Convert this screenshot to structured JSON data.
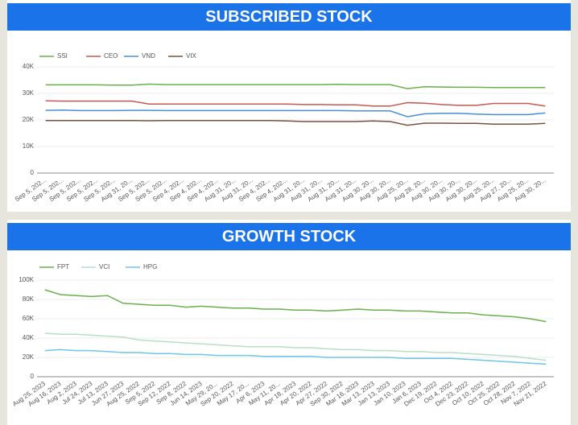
{
  "chart_data": [
    {
      "type": "line",
      "title": "SUBSCRIBED STOCK",
      "categories": [
        "Sep 5, 202...",
        "Sep 5, 202...",
        "Sep 5, 202...",
        "Sep 5, 202...",
        "Sep 5, 202...",
        "Aug 31, 20...",
        "Sep 5, 202...",
        "Sep 5, 202...",
        "Sep 4, 202...",
        "Sep 4, 202...",
        "Sep 4, 202...",
        "Aug 31, 20...",
        "Aug 31, 20...",
        "Sep 4, 202...",
        "Sep 4, 202...",
        "Aug 31, 20...",
        "Aug 31, 20...",
        "Aug 31, 20...",
        "Aug 31, 20...",
        "Aug 30, 20...",
        "Aug 30, 20...",
        "Aug 25, 20...",
        "Aug 28, 20...",
        "Aug 30, 20...",
        "Aug 30, 20...",
        "Aug 30, 20...",
        "Aug 25, 20...",
        "Aug 27, 20...",
        "Aug 25, 20...",
        "Aug 30, 20..."
      ],
      "series": [
        {
          "name": "SSI",
          "color": "#6ab04c",
          "values": [
            33200,
            33200,
            33200,
            33200,
            33100,
            33100,
            33500,
            33300,
            33300,
            33300,
            33300,
            33300,
            33300,
            33300,
            33300,
            33300,
            33300,
            33400,
            33300,
            33300,
            33300,
            31800,
            32500,
            32400,
            32300,
            32300,
            32200,
            32200,
            32200,
            32200
          ]
        },
        {
          "name": "CEO",
          "color": "#c8584f",
          "values": [
            27200,
            27100,
            27100,
            27100,
            27100,
            27100,
            26000,
            26000,
            26000,
            26000,
            26000,
            26000,
            26000,
            26000,
            26000,
            25800,
            25800,
            25700,
            25700,
            25200,
            25200,
            26500,
            26300,
            25800,
            25500,
            25500,
            26200,
            26200,
            26200,
            25200
          ]
        },
        {
          "name": "VND",
          "color": "#4a90d9",
          "values": [
            23600,
            23700,
            23500,
            23500,
            23500,
            23600,
            23600,
            23500,
            23500,
            23500,
            23500,
            23500,
            23500,
            23500,
            23500,
            23500,
            23500,
            23500,
            23400,
            23400,
            23400,
            21200,
            22300,
            22500,
            22500,
            22200,
            22000,
            22000,
            22000,
            22600
          ]
        },
        {
          "name": "VIX",
          "color": "#7b5042",
          "values": [
            19800,
            19800,
            19800,
            19800,
            19800,
            19800,
            19700,
            19800,
            19800,
            19800,
            19800,
            19800,
            19800,
            19800,
            19600,
            19400,
            19400,
            19400,
            19400,
            19600,
            19400,
            18000,
            18800,
            18800,
            18700,
            18700,
            18400,
            18400,
            18400,
            18700
          ]
        }
      ],
      "ylim": [
        0,
        40000
      ],
      "yticks": [
        0,
        {
          "value": 10000,
          "label": "10K"
        },
        {
          "value": 20000,
          "label": "20K"
        },
        {
          "value": 30000,
          "label": "30K"
        },
        {
          "value": 40000,
          "label": "40K"
        }
      ],
      "grid": true,
      "legend": "top"
    },
    {
      "type": "line",
      "title": "GROWTH STOCK",
      "categories": [
        "Aug 25, 2023",
        "Aug 16, 2023",
        "Aug 2, 2023",
        "Jul 24, 2023",
        "Jul 13, 2023",
        "Jun 27, 2023",
        "Aug 25, 2022",
        "Sep 5, 2022",
        "Sep 12, 2022",
        "Sep 8, 2022",
        "Jun 14, 2023",
        "May 29, 20...",
        "Sep 20, 2022",
        "May 17, 20...",
        "Apr 6, 2023",
        "May 11, 20...",
        "Apr 18, 2023",
        "Apr 20, 2022",
        "Apr 27, 2022",
        "Sep 30, 2022",
        "Mar 16, 2023",
        "Mar 13, 2023",
        "Jan 13, 2023",
        "Jan 10, 2023",
        "Jan 6, 2023",
        "Dec 19, 2022",
        "Oct 4, 2022",
        "Dec 23, 2022",
        "Oct 10, 2022",
        "Oct 25, 2022",
        "Oct 28, 2022",
        "Nov 7, 2022",
        "Nov 21, 2022"
      ],
      "series": [
        {
          "name": "FPT",
          "color": "#6ab04c",
          "values": [
            90000,
            85000,
            84000,
            83000,
            84000,
            76000,
            75000,
            74000,
            74000,
            72000,
            73000,
            72000,
            71000,
            71000,
            70000,
            70000,
            69000,
            69000,
            68000,
            69000,
            70000,
            69000,
            69000,
            68000,
            68000,
            67000,
            66000,
            66000,
            64000,
            63000,
            62000,
            60000,
            57000
          ]
        },
        {
          "name": "VCI",
          "color": "#b5e0c6",
          "values": [
            45000,
            44000,
            44000,
            43000,
            42000,
            41000,
            38000,
            37000,
            36000,
            35000,
            34000,
            33000,
            32000,
            31000,
            31000,
            31000,
            30000,
            30000,
            29000,
            28000,
            28000,
            27000,
            27000,
            26000,
            26000,
            25000,
            25000,
            24000,
            23000,
            22000,
            21000,
            19000,
            17000
          ]
        },
        {
          "name": "HPG",
          "color": "#6ec6e8",
          "values": [
            27000,
            28000,
            27000,
            27000,
            26000,
            25000,
            25000,
            24000,
            24000,
            23000,
            23000,
            22000,
            22000,
            22000,
            21000,
            21000,
            21000,
            21000,
            20000,
            20000,
            20000,
            20000,
            20000,
            19000,
            19000,
            19000,
            19000,
            18000,
            17000,
            16000,
            15000,
            14000,
            13000
          ]
        }
      ],
      "ylim": [
        0,
        100000
      ],
      "yticks": [
        0,
        {
          "value": 20000,
          "label": "20K"
        },
        {
          "value": 40000,
          "label": "40K"
        },
        {
          "value": 60000,
          "label": "60K"
        },
        {
          "value": 80000,
          "label": "80K"
        },
        {
          "value": 100000,
          "label": "100K"
        }
      ],
      "grid": true,
      "legend": "top"
    }
  ]
}
